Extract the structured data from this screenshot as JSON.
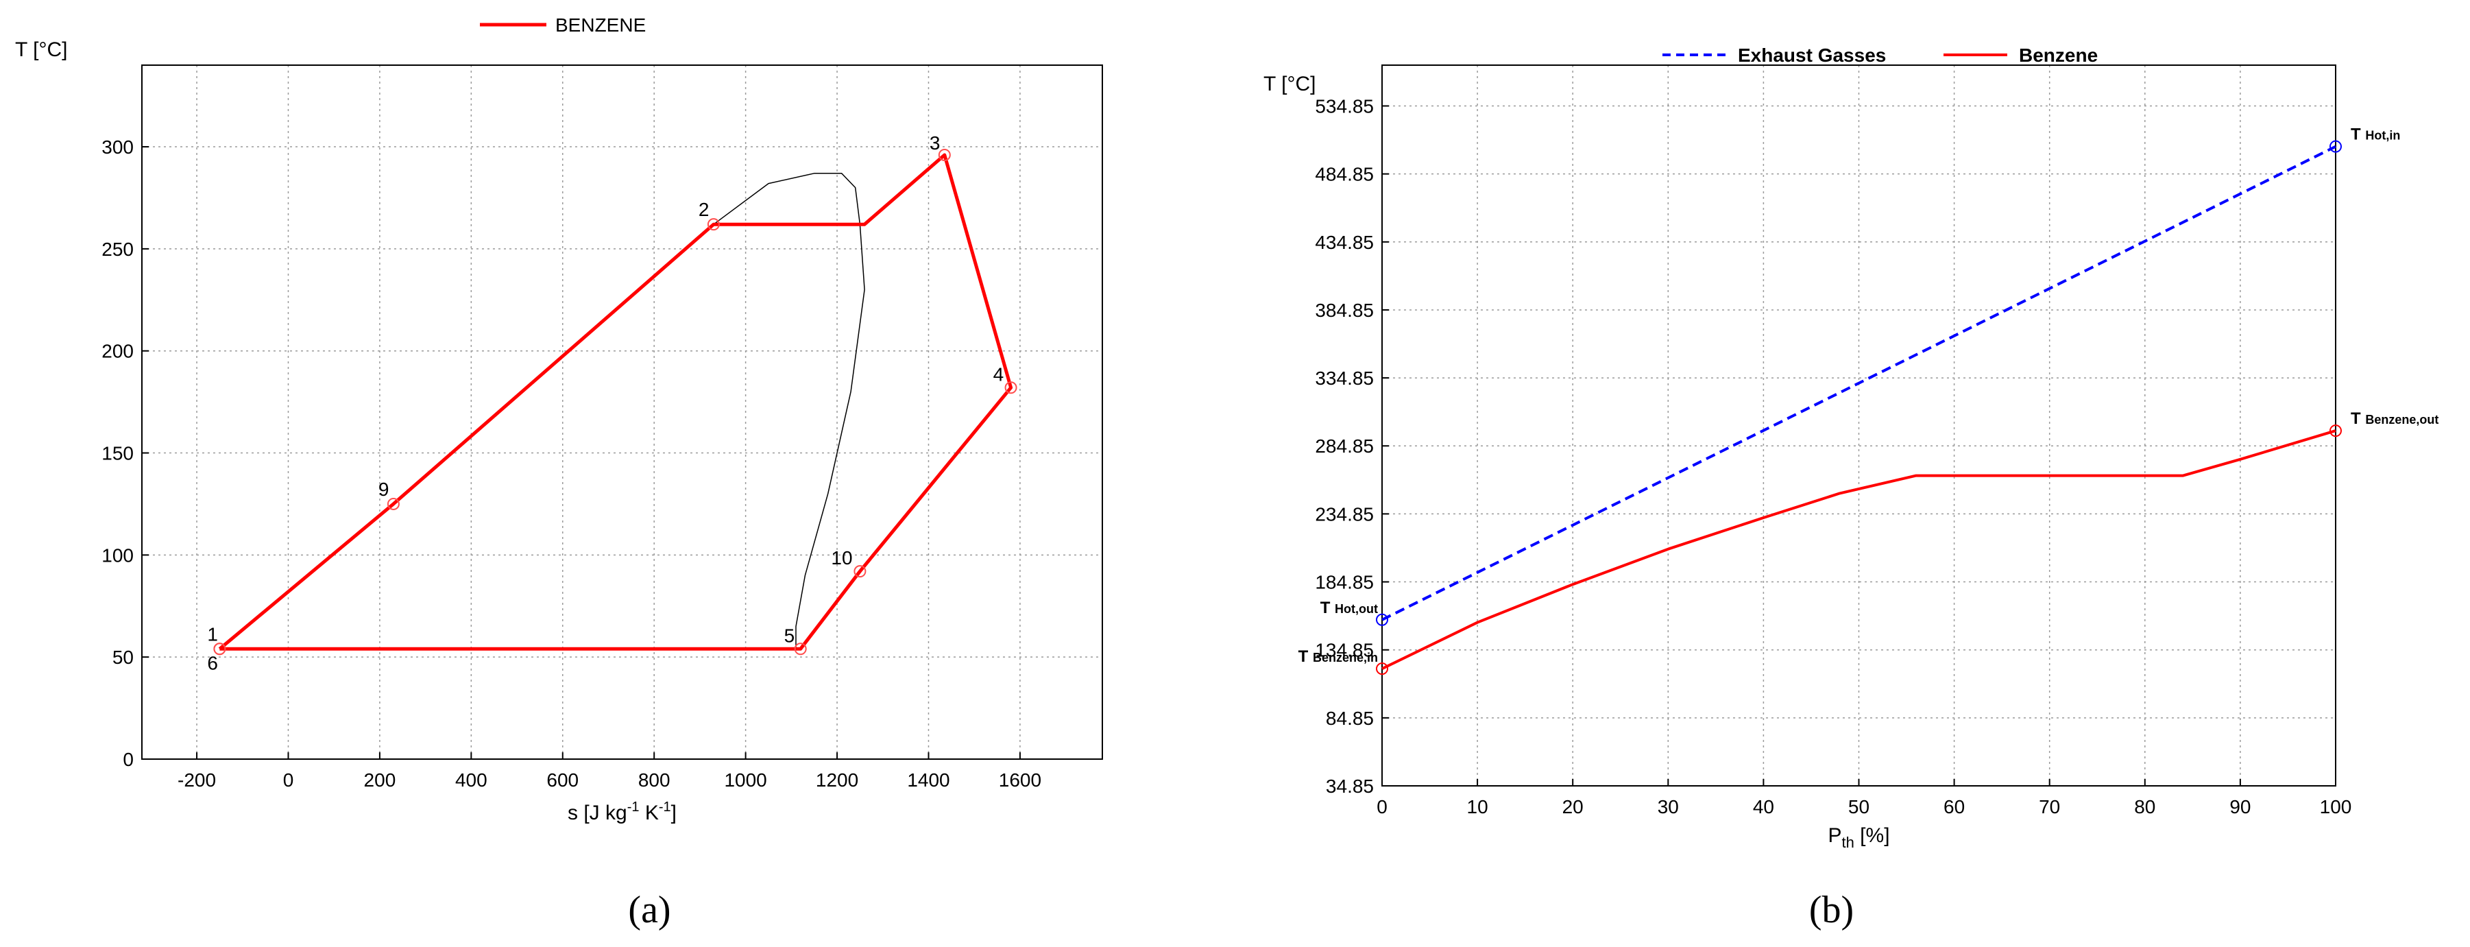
{
  "chart_data": [
    {
      "type": "line",
      "panel_caption": "(a)",
      "xlabel": "s [J kg",
      "xlabel_sup1": "-1",
      "xlabel_mid": " K",
      "xlabel_sup2": "-1",
      "xlabel_end": "]",
      "ylabel": "T [°C]",
      "xlim": [
        -320,
        1780
      ],
      "ylim": [
        0,
        340
      ],
      "xticks": [
        -200,
        0,
        200,
        400,
        600,
        800,
        1000,
        1200,
        1400,
        1600
      ],
      "yticks": [
        0,
        50,
        100,
        150,
        200,
        250,
        300
      ],
      "grid": true,
      "legend_position": "top-center",
      "series": [
        {
          "name": "BENZENE",
          "color": "#ff0000",
          "x": [
            -150,
            230,
            930,
            1260,
            1435,
            1580,
            1250,
            1120,
            -150
          ],
          "y": [
            54,
            125,
            262,
            262,
            296,
            182,
            92,
            54,
            54
          ]
        },
        {
          "color": "#000000",
          "x": [
            -150,
            230,
            930,
            1050,
            1150,
            1210,
            1240,
            1250,
            1260,
            1230,
            1180,
            1130,
            1110,
            1110
          ],
          "y": [
            54,
            125,
            262,
            282,
            287,
            287,
            280,
            262,
            230,
            180,
            130,
            90,
            65,
            54
          ]
        }
      ],
      "markers": [
        {
          "label": "1",
          "x": -150,
          "y": 54
        },
        {
          "label": "6",
          "x": -150,
          "y": 54
        },
        {
          "label": "9",
          "x": 230,
          "y": 125
        },
        {
          "label": "2",
          "x": 930,
          "y": 262
        },
        {
          "label": "3",
          "x": 1435,
          "y": 296
        },
        {
          "label": "4",
          "x": 1580,
          "y": 182
        },
        {
          "label": "10",
          "x": 1250,
          "y": 92
        },
        {
          "label": "5",
          "x": 1120,
          "y": 54
        }
      ]
    },
    {
      "type": "line",
      "panel_caption": "(b)",
      "xlabel": "P",
      "xlabel_sub": "th",
      "xlabel_end": " [%]",
      "ylabel": "T [°C]",
      "xlim": [
        0,
        100
      ],
      "ylim": [
        34.85,
        564.85
      ],
      "xticks": [
        0,
        10,
        20,
        30,
        40,
        50,
        60,
        70,
        80,
        90,
        100
      ],
      "yticks": [
        34.85,
        84.85,
        134.85,
        184.85,
        234.85,
        284.85,
        334.85,
        384.85,
        434.85,
        484.85,
        534.85
      ],
      "grid": true,
      "legend_position": "top-center",
      "series": [
        {
          "name": "Exhaust Gasses",
          "color": "#0000ff",
          "dashed": true,
          "x": [
            0,
            100
          ],
          "y": [
            157,
            505
          ]
        },
        {
          "name": "Benzene",
          "color": "#ff0000",
          "dashed": false,
          "x": [
            0,
            10,
            20,
            30,
            40,
            48,
            56,
            65,
            75,
            84,
            90,
            100
          ],
          "y": [
            121,
            155,
            183,
            209,
            232,
            250,
            263,
            263,
            263,
            263,
            275,
            296
          ]
        }
      ],
      "end_labels": [
        {
          "main": "T",
          "sub": "Hot,in",
          "x": 100,
          "y": 505
        },
        {
          "main": "T",
          "sub": "Benzene,out",
          "x": 100,
          "y": 296
        },
        {
          "main": "T",
          "sub": "Hot,out",
          "x": 0,
          "y": 157
        },
        {
          "main": "T",
          "sub": "Benzene,in",
          "x": 0,
          "y": 121
        }
      ]
    }
  ]
}
